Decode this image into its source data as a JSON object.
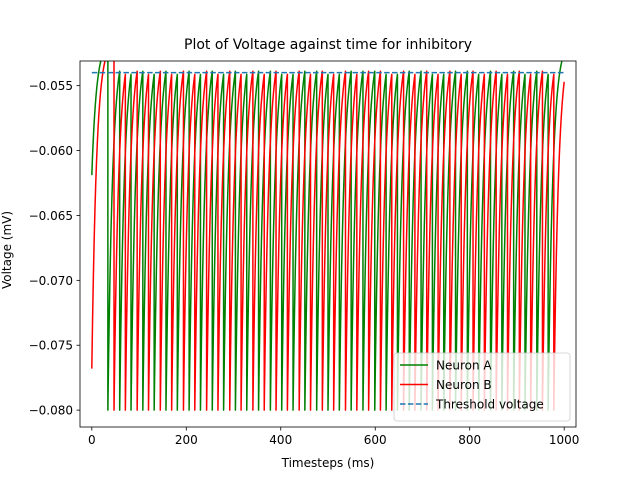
{
  "chart_data": {
    "type": "line",
    "title": "Plot of Voltage against time for inhibitory",
    "xlabel": "Timesteps (ms)",
    "ylabel": "Voltage (mV)",
    "xlim": [
      -25,
      1025
    ],
    "ylim": [
      -0.0813,
      -0.0531
    ],
    "xticks": [
      0,
      200,
      400,
      600,
      800,
      1000
    ],
    "xtick_labels": [
      "0",
      "200",
      "400",
      "600",
      "800",
      "1000"
    ],
    "yticks": [
      -0.08,
      -0.075,
      -0.07,
      -0.065,
      -0.06,
      -0.055
    ],
    "ytick_labels": [
      "−0.080",
      "−0.075",
      "−0.070",
      "−0.065",
      "−0.060",
      "−0.055"
    ],
    "grid": false,
    "legend_position": "lower-right",
    "threshold": -0.054,
    "reset": -0.08,
    "series": [
      {
        "name": "Neuron A",
        "color": "#008000",
        "style": "solid",
        "start": [
          0,
          -0.0619
        ],
        "end": [
          1000,
          -0.0577
        ],
        "spike_times": [
          34,
          59,
          83,
          108,
          132,
          157,
          181,
          206,
          230,
          255,
          279,
          304,
          328,
          353,
          378,
          402,
          426,
          451,
          476,
          500,
          524,
          549,
          574,
          599,
          623,
          647,
          672,
          697,
          721,
          745,
          770,
          795,
          819,
          844,
          868,
          893,
          917,
          942,
          966
        ]
      },
      {
        "name": "Neuron B",
        "color": "#ff0000",
        "style": "solid",
        "start": [
          0,
          -0.0768
        ],
        "end": [
          1000,
          -0.0547
        ],
        "spike_times": [
          47,
          71,
          96,
          120,
          145,
          169,
          194,
          218,
          243,
          267,
          292,
          316,
          341,
          365,
          390,
          414,
          439,
          463,
          488,
          512,
          537,
          561,
          586,
          611,
          635,
          660,
          684,
          709,
          733,
          758,
          782,
          807,
          831,
          856,
          880,
          905,
          929,
          954,
          978
        ]
      },
      {
        "name": "Threshold voltage",
        "color": "#1f77b4",
        "style": "dashed",
        "x": [
          0,
          1000
        ],
        "y": [
          -0.054,
          -0.054
        ]
      }
    ]
  }
}
